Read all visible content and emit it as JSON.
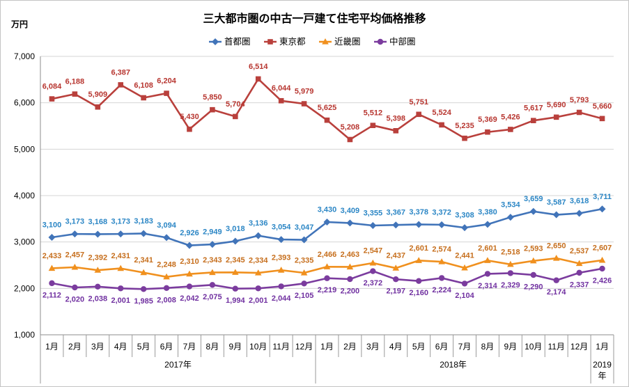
{
  "chart_data": {
    "type": "line",
    "title": "三大都市圏の中古一戸建て住宅平均価格推移",
    "ylabel": "万円",
    "ylim": [
      1000,
      7000
    ],
    "yticks": [
      1000,
      2000,
      3000,
      4000,
      5000,
      6000,
      7000
    ],
    "grid": true,
    "legend": "top",
    "categories": [
      "1月",
      "2月",
      "3月",
      "4月",
      "5月",
      "6月",
      "7月",
      "8月",
      "9月",
      "10月",
      "11月",
      "12月",
      "1月",
      "2月",
      "3月",
      "4月",
      "5月",
      "6月",
      "7月",
      "8月",
      "9月",
      "10月",
      "11月",
      "12月",
      "1月"
    ],
    "groups": [
      {
        "label": "2017年",
        "count": 12
      },
      {
        "label": "2018年",
        "count": 12
      },
      {
        "label": "2019年",
        "count": 1
      }
    ],
    "series": [
      {
        "name": "首都圏",
        "color": "#4174B9",
        "label_color": "#2B86C5",
        "marker": "diamond",
        "values": [
          3100,
          3173,
          3168,
          3173,
          3183,
          3094,
          2926,
          2949,
          3018,
          3136,
          3054,
          3047,
          3430,
          3409,
          3355,
          3367,
          3378,
          3372,
          3308,
          3380,
          3534,
          3659,
          3587,
          3618,
          3711
        ]
      },
      {
        "name": "東京都",
        "color": "#B9403C",
        "label_color": "#B7352F",
        "marker": "square",
        "values": [
          6084,
          6188,
          5909,
          6387,
          6108,
          6204,
          5430,
          5850,
          5704,
          6514,
          6044,
          5979,
          5625,
          5208,
          5512,
          5398,
          5751,
          5524,
          5235,
          5369,
          5426,
          5617,
          5690,
          5793,
          5660
        ]
      },
      {
        "name": "近畿圏",
        "color": "#F0901E",
        "label_color": "#C66E1C",
        "marker": "triangle",
        "values": [
          2433,
          2457,
          2392,
          2431,
          2341,
          2248,
          2310,
          2343,
          2345,
          2334,
          2393,
          2335,
          2466,
          2463,
          2547,
          2437,
          2601,
          2574,
          2441,
          2601,
          2518,
          2593,
          2650,
          2537,
          2607
        ]
      },
      {
        "name": "中部圏",
        "color": "#7B3C9E",
        "label_color": "#7030A0",
        "marker": "circle",
        "values": [
          2112,
          2020,
          2038,
          2001,
          1985,
          2008,
          2042,
          2075,
          1994,
          2001,
          2044,
          2105,
          2219,
          2200,
          2372,
          2197,
          2160,
          2224,
          2104,
          2314,
          2329,
          2290,
          2174,
          2337,
          2426
        ]
      }
    ]
  }
}
